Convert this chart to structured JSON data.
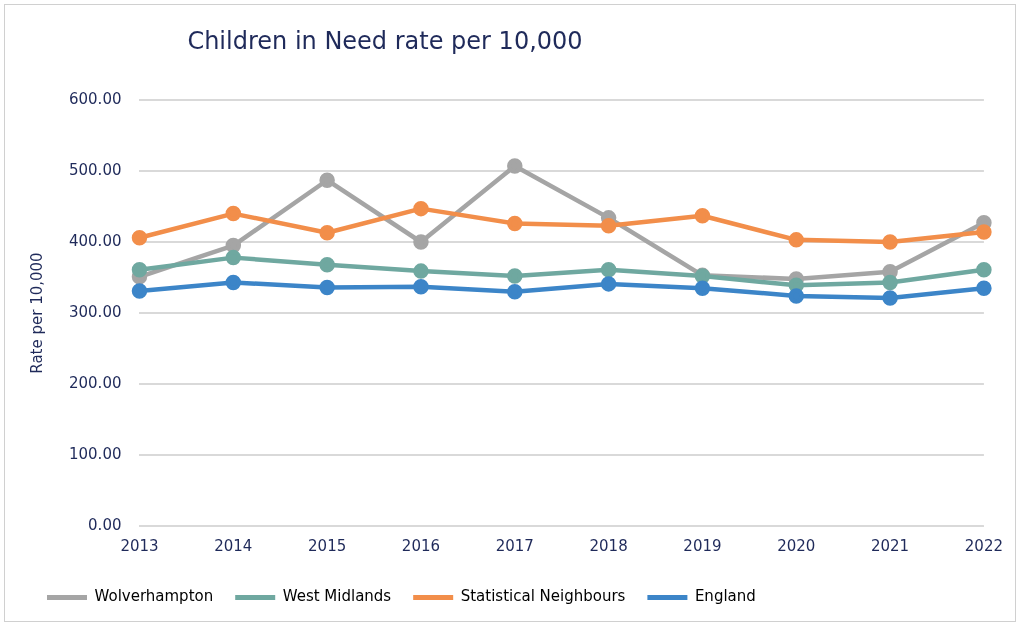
{
  "chart_data": {
    "type": "line",
    "title": "Children in Need rate per 10,000",
    "ylabel": "Rate per 10,000",
    "categories": [
      "2013",
      "2014",
      "2015",
      "2016",
      "2017",
      "2018",
      "2019",
      "2020",
      "2021",
      "2022"
    ],
    "series": [
      {
        "name": "Wolverhampton",
        "color": "#a5a5a5",
        "values": [
          351,
          395,
          487,
          400,
          507,
          434,
          353,
          348,
          358,
          427
        ]
      },
      {
        "name": "West Midlands",
        "color": "#6fa8a0",
        "values": [
          361,
          378,
          368,
          359,
          352,
          361,
          352,
          339,
          343,
          361
        ]
      },
      {
        "name": "Statistical Neighbours",
        "color": "#f28e4a",
        "values": [
          406,
          440,
          413,
          447,
          426,
          423,
          437,
          403,
          400,
          414
        ]
      },
      {
        "name": "England",
        "color": "#3c85c8",
        "values": [
          331,
          343,
          336,
          337,
          330,
          341,
          335,
          324,
          321,
          335
        ]
      }
    ],
    "ylim": [
      0,
      600
    ],
    "yticks": [
      {
        "value": 0,
        "label": "0.00"
      },
      {
        "value": 100,
        "label": "100.00"
      },
      {
        "value": 200,
        "label": "200.00"
      },
      {
        "value": 300,
        "label": "300.00"
      },
      {
        "value": 400,
        "label": "400.00"
      },
      {
        "value": 500,
        "label": "500.00"
      },
      {
        "value": 600,
        "label": "600.00"
      }
    ],
    "grid": "y",
    "legend": "bottom",
    "marker": "circle",
    "line_style": "solid"
  }
}
